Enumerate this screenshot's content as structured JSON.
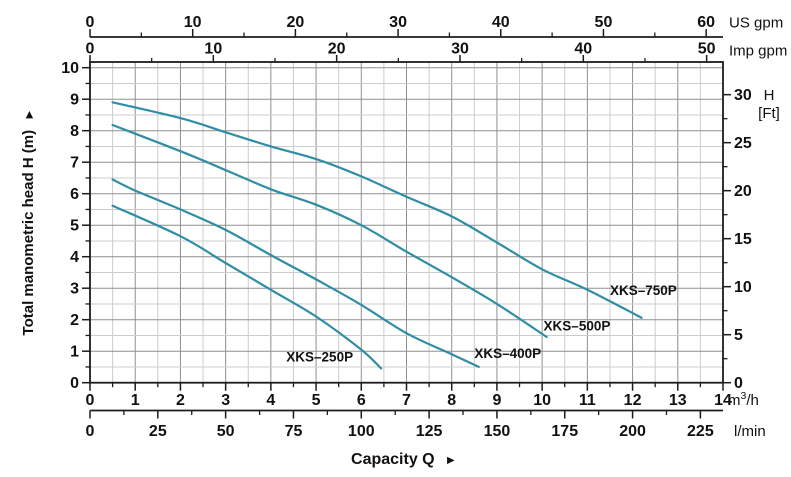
{
  "chart_data": {
    "type": "line",
    "title": "",
    "x_label": "Capacity Q",
    "y_label": "Total manometric head H (m)",
    "arrow_glyph": "►",
    "legend_position": "labels-on-curves",
    "grid": true,
    "axes": {
      "us_gpm": {
        "unit": "US gpm",
        "range": [
          0,
          60
        ],
        "major_ticks": [
          0,
          10,
          20,
          30,
          40,
          50,
          60
        ],
        "minor_ticks": [
          5,
          15,
          25,
          35,
          45,
          55
        ]
      },
      "imp_gpm": {
        "unit": "Imp gpm",
        "range": [
          0,
          50
        ],
        "major_ticks": [
          0,
          10,
          20,
          30,
          40,
          50
        ],
        "minor_ticks": [
          5,
          15,
          25,
          35,
          45
        ]
      },
      "head_m": {
        "range": [
          0,
          10
        ],
        "major_ticks": [
          0,
          1,
          2,
          3,
          4,
          5,
          6,
          7,
          8,
          9,
          10
        ],
        "minor_step": 0.5
      },
      "head_ft": {
        "unit_line1": "H",
        "unit_line2": "[Ft]",
        "range": [
          0,
          30
        ],
        "major_ticks": [
          0,
          5,
          10,
          15,
          20,
          25,
          30
        ],
        "minor_ticks": [
          2.5,
          7.5,
          12.5,
          17.5,
          22.5,
          27.5
        ]
      },
      "m3h": {
        "unit_base": "m",
        "unit_sup": "3",
        "unit_rest": "/h",
        "range": [
          0,
          14
        ],
        "major_ticks": [
          0,
          1,
          2,
          3,
          4,
          5,
          6,
          7,
          8,
          9,
          10,
          11,
          12,
          13,
          14
        ],
        "minor_step": 0.5
      },
      "lmin": {
        "unit": "l/min",
        "range": [
          0,
          225
        ],
        "major_ticks": [
          0,
          25,
          50,
          75,
          100,
          125,
          150,
          175,
          200,
          225
        ],
        "minor_step": 12.5
      }
    },
    "series": [
      {
        "name": "XKS-250P",
        "label": "XKS–250P",
        "label_pos": [
          5.08,
          0.82
        ],
        "points": [
          [
            0.5,
            5.62
          ],
          [
            2,
            4.65
          ],
          [
            3,
            3.8
          ],
          [
            4,
            2.95
          ],
          [
            5,
            2.1
          ],
          [
            6,
            1.05
          ],
          [
            6.44,
            0.45
          ]
        ]
      },
      {
        "name": "XKS-400P",
        "label": "XKS–400P",
        "label_pos": [
          9.24,
          0.93
        ],
        "points": [
          [
            0.5,
            6.45
          ],
          [
            1,
            6.1
          ],
          [
            2,
            5.5
          ],
          [
            3,
            4.85
          ],
          [
            4,
            4.05
          ],
          [
            5,
            3.28
          ],
          [
            6,
            2.47
          ],
          [
            7,
            1.57
          ],
          [
            8,
            0.9
          ],
          [
            8.6,
            0.5
          ]
        ]
      },
      {
        "name": "XKS-500P",
        "label": "XKS–500P",
        "label_pos": [
          10.77,
          1.8
        ],
        "points": [
          [
            0.5,
            8.18
          ],
          [
            2,
            7.35
          ],
          [
            3,
            6.75
          ],
          [
            4,
            6.14
          ],
          [
            5,
            5.65
          ],
          [
            6,
            5.0
          ],
          [
            7,
            4.16
          ],
          [
            8,
            3.35
          ],
          [
            9,
            2.5
          ],
          [
            10.1,
            1.45
          ]
        ]
      },
      {
        "name": "XKS-750P",
        "label": "XKS–750P",
        "label_pos": [
          12.24,
          2.93
        ],
        "points": [
          [
            0.5,
            8.9
          ],
          [
            2,
            8.4
          ],
          [
            3,
            7.95
          ],
          [
            4,
            7.5
          ],
          [
            5,
            7.1
          ],
          [
            6,
            6.55
          ],
          [
            7,
            5.9
          ],
          [
            8,
            5.28
          ],
          [
            9,
            4.45
          ],
          [
            10,
            3.6
          ],
          [
            11,
            2.95
          ],
          [
            12.2,
            2.06
          ]
        ]
      }
    ],
    "colors": {
      "curve": "#2f8ea4",
      "grid_minor": "#cccccc",
      "grid_major": "#8f8f8f",
      "axis": "#1c1c1c",
      "text": "#111111"
    }
  }
}
